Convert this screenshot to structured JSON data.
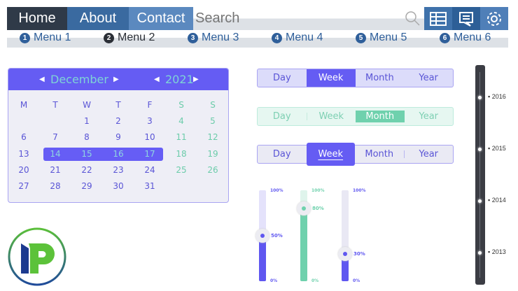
{
  "nav": {
    "tabs": [
      "Home",
      "About",
      "Contact"
    ],
    "search_placeholder": "Search",
    "icons": [
      "search-icon",
      "table-icon",
      "comment-icon",
      "gear-icon"
    ]
  },
  "menu": [
    {
      "num": "1",
      "label": "Menu 1"
    },
    {
      "num": "2",
      "label": "Menu 2"
    },
    {
      "num": "3",
      "label": "Menu 3"
    },
    {
      "num": "4",
      "label": "Menu 4"
    },
    {
      "num": "5",
      "label": "Menu 5"
    },
    {
      "num": "6",
      "label": "Menu 6"
    }
  ],
  "calendar": {
    "month": "December",
    "year": "2021",
    "weekdays": [
      "M",
      "T",
      "W",
      "T",
      "F",
      "S",
      "S"
    ],
    "weeks": [
      [
        "",
        "",
        "1",
        "2",
        "3",
        "4",
        "5"
      ],
      [
        "6",
        "7",
        "8",
        "9",
        "10",
        "11",
        "12"
      ],
      [
        "13",
        "14",
        "15",
        "16",
        "17",
        "18",
        "19"
      ],
      [
        "20",
        "21",
        "22",
        "23",
        "24",
        "25",
        "26"
      ],
      [
        "27",
        "28",
        "29",
        "30",
        "31",
        "",
        ""
      ]
    ],
    "selected_range": [
      "14",
      "15",
      "16",
      "17"
    ]
  },
  "segmented": [
    {
      "options": [
        "Day",
        "Week",
        "Month",
        "Year"
      ],
      "active": "Week"
    },
    {
      "options": [
        "Day",
        "Week",
        "Month",
        "Year"
      ],
      "active": "Month"
    },
    {
      "options": [
        "Day",
        "Week",
        "Month",
        "Year"
      ],
      "active": "Week"
    }
  ],
  "sliders": [
    {
      "value": 50,
      "label": "50%",
      "max_label": "100%",
      "min_label": "0%",
      "color": "#5f57f0"
    },
    {
      "value": 80,
      "label": "80%",
      "max_label": "100%",
      "min_label": "0%",
      "color": "#6fd1ad"
    },
    {
      "value": 30,
      "label": "30%",
      "max_label": "100%",
      "min_label": "0%",
      "color": "#5f57f0"
    }
  ],
  "timeline": {
    "years": [
      "2016",
      "2015",
      "2014",
      "2013"
    ]
  },
  "colors": {
    "nav_home": "#2f3a48",
    "nav_about": "#3a6aa0",
    "nav_contact": "#5b89bf",
    "accent_purple": "#655cf3",
    "accent_green": "#6fd1ad"
  }
}
